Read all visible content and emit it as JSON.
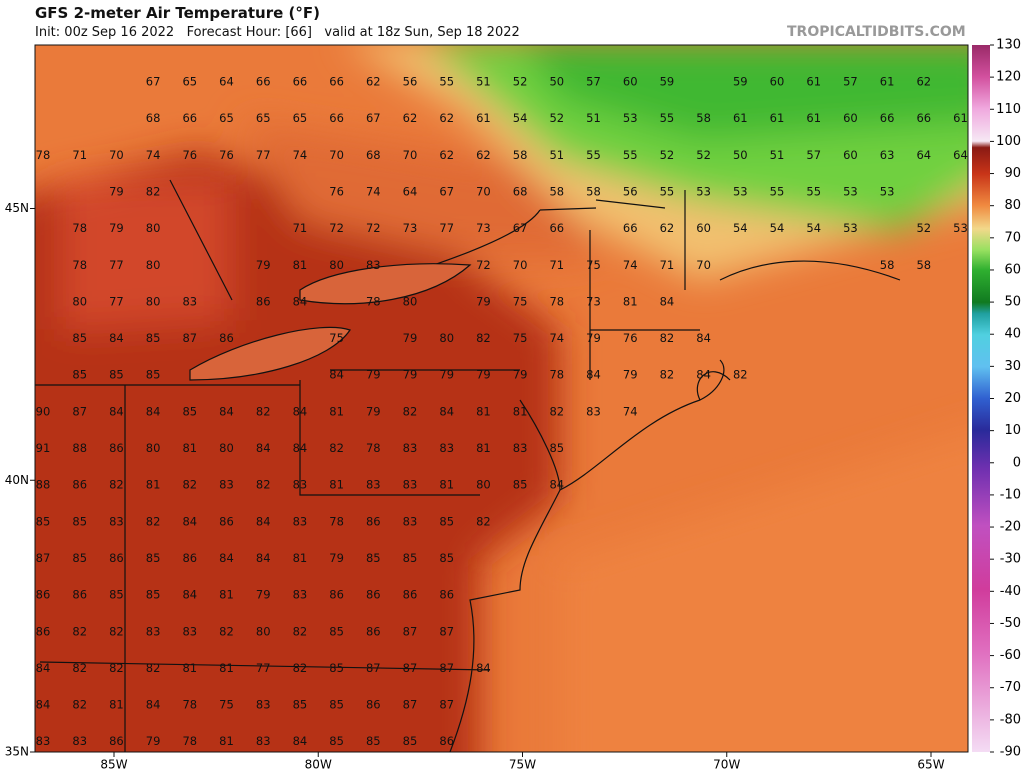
{
  "header": {
    "title": "GFS 2-meter Air Temperature (°F)",
    "subtitle": "Init: 00z Sep 16 2022   Forecast Hour: [66]   valid at 18z Sun, Sep 18 2022",
    "brand": "TROPICALTIDBITS.COM"
  },
  "map": {
    "lat_ticks": [
      {
        "value": 45,
        "label": "45N"
      },
      {
        "value": 40,
        "label": "40N"
      },
      {
        "value": 35,
        "label": "35N"
      }
    ],
    "lon_ticks": [
      {
        "value": -85,
        "label": "85W"
      },
      {
        "value": -80,
        "label": "80W"
      },
      {
        "value": -75,
        "label": "75W"
      },
      {
        "value": -70,
        "label": "70W"
      },
      {
        "value": -65,
        "label": "65W"
      }
    ],
    "temperature_rows": [
      [
        null,
        null,
        null,
        67,
        65,
        64,
        66,
        66,
        66,
        62,
        56,
        55,
        51,
        52,
        50,
        57,
        60,
        59,
        null,
        59,
        60,
        61,
        57,
        61,
        62
      ],
      [
        null,
        null,
        null,
        68,
        66,
        65,
        65,
        65,
        66,
        67,
        62,
        62,
        61,
        54,
        52,
        51,
        53,
        55,
        58,
        61,
        61,
        61,
        60,
        66,
        66,
        61
      ],
      [
        78,
        71,
        70,
        74,
        76,
        76,
        77,
        74,
        70,
        68,
        70,
        62,
        62,
        58,
        51,
        55,
        55,
        52,
        52,
        50,
        51,
        57,
        60,
        63,
        64,
        64
      ],
      [
        null,
        null,
        79,
        82,
        null,
        null,
        null,
        null,
        76,
        74,
        64,
        67,
        70,
        68,
        58,
        58,
        56,
        55,
        53,
        53,
        55,
        55,
        53,
        53
      ],
      [
        null,
        78,
        79,
        80,
        null,
        null,
        null,
        71,
        72,
        72,
        73,
        77,
        73,
        67,
        66,
        null,
        66,
        62,
        60,
        54,
        54,
        54,
        53,
        null,
        52,
        53
      ],
      [
        null,
        78,
        77,
        80,
        null,
        null,
        79,
        81,
        80,
        83,
        null,
        null,
        72,
        70,
        71,
        75,
        74,
        71,
        70,
        null,
        null,
        null,
        null,
        58,
        58
      ],
      [
        null,
        80,
        77,
        80,
        83,
        null,
        86,
        84,
        null,
        78,
        80,
        null,
        79,
        75,
        78,
        73,
        81,
        84
      ],
      [
        null,
        85,
        84,
        85,
        87,
        86,
        null,
        null,
        75,
        null,
        79,
        80,
        82,
        75,
        74,
        79,
        76,
        82,
        84
      ],
      [
        null,
        85,
        85,
        85,
        null,
        null,
        null,
        null,
        84,
        79,
        79,
        79,
        79,
        79,
        78,
        84,
        79,
        82,
        84,
        82
      ],
      [
        90,
        87,
        84,
        84,
        85,
        84,
        82,
        84,
        81,
        79,
        82,
        84,
        81,
        81,
        82,
        83,
        74
      ],
      [
        91,
        88,
        86,
        80,
        81,
        80,
        84,
        84,
        82,
        78,
        83,
        83,
        81,
        83,
        85
      ],
      [
        88,
        86,
        82,
        81,
        82,
        83,
        82,
        83,
        81,
        83,
        83,
        81,
        80,
        85,
        84
      ],
      [
        85,
        85,
        83,
        82,
        84,
        86,
        84,
        83,
        78,
        86,
        83,
        85,
        82
      ],
      [
        87,
        85,
        86,
        85,
        86,
        84,
        84,
        81,
        79,
        85,
        85,
        85
      ],
      [
        86,
        86,
        85,
        85,
        84,
        81,
        79,
        83,
        86,
        86,
        86,
        86
      ],
      [
        86,
        82,
        82,
        83,
        83,
        82,
        80,
        82,
        85,
        86,
        87,
        87
      ],
      [
        84,
        82,
        82,
        82,
        81,
        81,
        77,
        82,
        85,
        87,
        87,
        87,
        84
      ],
      [
        84,
        82,
        81,
        84,
        78,
        75,
        83,
        85,
        85,
        86,
        87,
        87
      ],
      [
        83,
        83,
        86,
        79,
        78,
        81,
        83,
        84,
        85,
        85,
        85,
        86
      ]
    ]
  },
  "colorbar": {
    "lim": [
      -90,
      130
    ],
    "ticks": [
      130,
      120,
      110,
      100,
      90,
      80,
      70,
      60,
      50,
      40,
      30,
      20,
      10,
      0,
      -10,
      -20,
      -30,
      -40,
      -50,
      -60,
      -70,
      -80,
      -90
    ]
  }
}
